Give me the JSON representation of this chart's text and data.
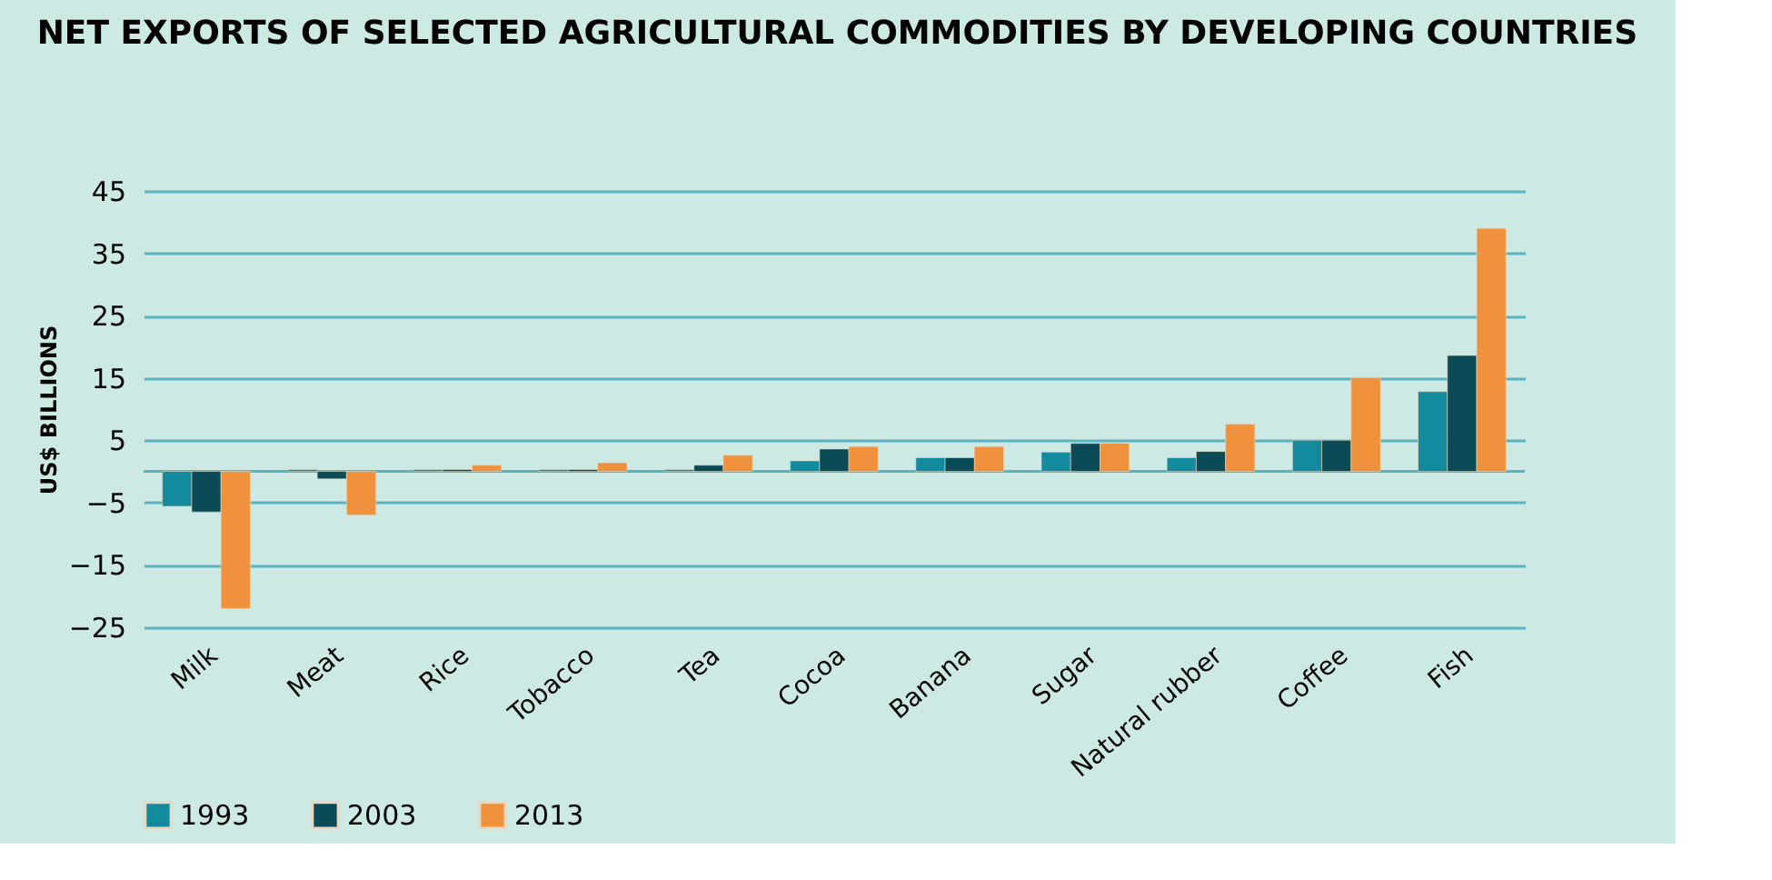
{
  "chart_data": {
    "type": "bar",
    "title": "NET EXPORTS OF SELECTED AGRICULTURAL COMMODITIES BY DEVELOPING COUNTRIES",
    "ylabel": "US$ BILLIONS",
    "categories": [
      "Milk",
      "Meat",
      "Rice",
      "Tobacco",
      "Tea",
      "Cocoa",
      "Banana",
      "Sugar",
      "Natural rubber",
      "Coffee",
      "Fish"
    ],
    "series": [
      {
        "name": "1993",
        "color": "#138a9e",
        "values": [
          -5.6,
          0.3,
          0.3,
          0.3,
          0.3,
          1.7,
          2.2,
          3.1,
          2.2,
          5.0,
          12.8
        ]
      },
      {
        "name": "2003",
        "color": "#0b4b58",
        "values": [
          -6.5,
          -1.2,
          0.3,
          0.3,
          1.0,
          3.6,
          2.2,
          4.5,
          3.2,
          5.0,
          18.6
        ]
      },
      {
        "name": "2013",
        "color": "#f0923d",
        "values": [
          -22,
          -7,
          1.0,
          1.4,
          2.6,
          4.0,
          4.0,
          4.5,
          7.6,
          15.0,
          39
        ]
      }
    ],
    "ylim": [
      -25,
      45
    ],
    "yticks": [
      -25,
      -15,
      -5,
      5,
      15,
      25,
      35,
      45
    ],
    "grid": "y",
    "legend": "bottom left",
    "ref_lines": [
      {
        "axis": "y",
        "value": 0,
        "color": "#5bb3c0"
      }
    ]
  }
}
